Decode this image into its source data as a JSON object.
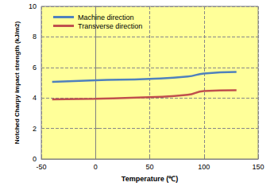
{
  "chart_data": {
    "type": "line",
    "x_label": "Temperature (℃)",
    "y_label": "Notched Charpy impact strength (kJ/m2)",
    "x": [
      -40,
      0,
      50,
      85,
      100,
      130
    ],
    "series": [
      {
        "name": "Machine direction",
        "color": "#4f81bd",
        "values": [
          5.05,
          5.15,
          5.25,
          5.4,
          5.6,
          5.7
        ]
      },
      {
        "name": "Transverse direction",
        "color": "#c0504d",
        "values": [
          3.9,
          3.95,
          4.05,
          4.2,
          4.45,
          4.5
        ]
      }
    ],
    "xlim": [
      -50,
      150
    ],
    "xticks": [
      -50,
      0,
      50,
      100,
      150
    ],
    "ylim": [
      0,
      10
    ],
    "yticks": [
      0,
      2,
      4,
      6,
      8,
      10
    ],
    "grid": true,
    "legend": "upper left"
  }
}
